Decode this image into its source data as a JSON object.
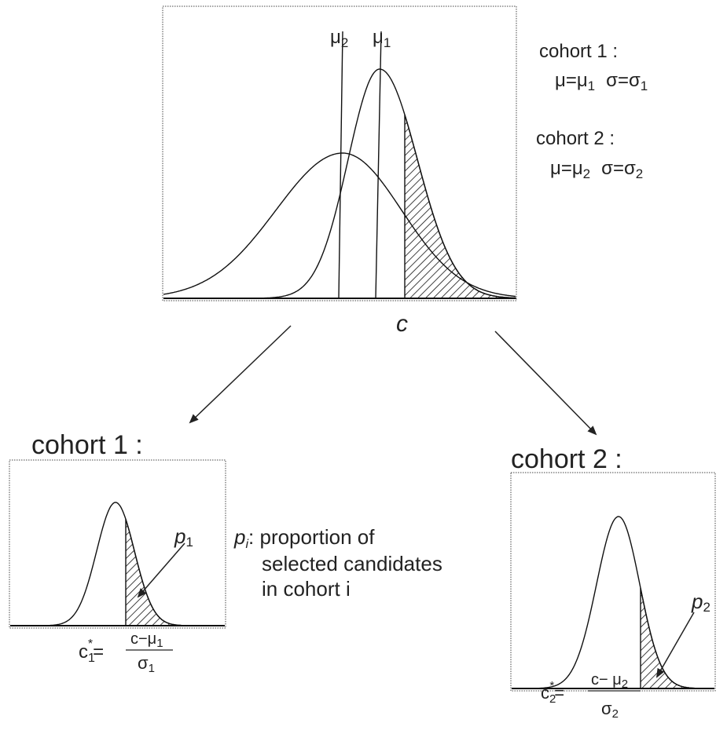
{
  "main_plot": {
    "line_labels": [
      {
        "base": "μ",
        "sub": "2"
      },
      {
        "base": "μ",
        "sub": "1"
      }
    ],
    "x_label": "c"
  },
  "legend": [
    {
      "title": "cohort 1 :",
      "mu": {
        "base": "μ=μ",
        "sub": "1"
      },
      "sigma": {
        "base": "σ=σ",
        "sub": "1"
      }
    },
    {
      "title": "cohort 2 :",
      "mu": {
        "base": "μ=μ",
        "sub": "2"
      },
      "sigma": {
        "base": "σ=σ",
        "sub": "2"
      }
    }
  ],
  "panels": [
    {
      "title": "cohort 1 :",
      "p_label": {
        "base": "p",
        "sub": "1"
      },
      "formula": {
        "base": "c",
        "sub": "1",
        "sup": "*",
        "eq": "=",
        "numerator": "c−μ",
        "numerator_sub": "1",
        "denominator": "σ",
        "denominator_sub": "1"
      }
    },
    {
      "title": "cohort 2 :",
      "p_label": {
        "base": "p",
        "sub": "2"
      },
      "formula": {
        "base": "c",
        "sub": "2",
        "sup": "*",
        "eq": "=",
        "numerator": "c− μ",
        "numerator_sub": "2",
        "denominator": "σ",
        "denominator_sub": "2"
      }
    }
  ],
  "note": {
    "symbol": {
      "base": "p",
      "sub": "i"
    },
    "lines": [
      ": proportion of",
      "selected candidates",
      "in cohort i"
    ]
  }
}
